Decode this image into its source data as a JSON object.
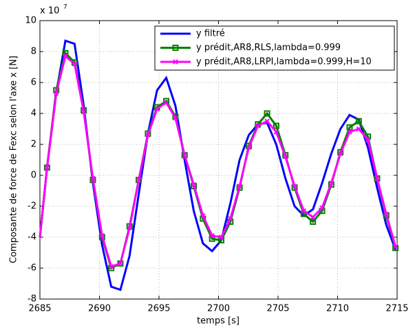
{
  "chart_data": {
    "type": "line",
    "x_label": "temps [s]",
    "y_label": "Composante de force de Fexc selon l'axe x [N]",
    "y_scale_base": "x 10",
    "y_scale_power": "7",
    "xlim": [
      2685,
      2715
    ],
    "xticks": [
      2685,
      2690,
      2695,
      2700,
      2705,
      2710,
      2715
    ],
    "ylim": [
      -8,
      10
    ],
    "yticks": [
      -8,
      -6,
      -4,
      -2,
      0,
      2,
      4,
      6,
      8,
      10
    ],
    "grid": true,
    "legend": "upper right",
    "x": [
      2685,
      2685.6,
      2686.37,
      2687.14,
      2687.91,
      2688.68,
      2689.45,
      2690.22,
      2690.99,
      2691.76,
      2692.53,
      2693.3,
      2694.07,
      2694.84,
      2695.61,
      2696.38,
      2697.15,
      2697.92,
      2698.69,
      2699.46,
      2700.23,
      2701.0,
      2701.77,
      2702.54,
      2703.31,
      2704.08,
      2704.85,
      2705.62,
      2706.39,
      2707.16,
      2707.93,
      2708.7,
      2709.47,
      2710.24,
      2711.01,
      2711.78,
      2712.55,
      2713.32,
      2714.09,
      2714.86
    ],
    "series": [
      {
        "name": "y filtré",
        "color": "#0000ff",
        "marker": "none",
        "values": [
          -4,
          0.5,
          5.3,
          8.7,
          8.5,
          4.5,
          -0.5,
          -4.5,
          -7.2,
          -7.4,
          -5.2,
          -1.2,
          2.7,
          5.5,
          6.3,
          4.5,
          1.0,
          -2.3,
          -4.4,
          -4.9,
          -4.2,
          -1.8,
          1.0,
          2.6,
          3.3,
          3.4,
          2.0,
          -0.2,
          -2.0,
          -2.6,
          -2.2,
          -0.5,
          1.4,
          3.0,
          3.9,
          3.6,
          1.8,
          -0.8,
          -3.2,
          -4.8
        ]
      },
      {
        "name": "y prédit,AR8,RLS,lambda=0.999",
        "color": "#008000",
        "marker": "square",
        "values": [
          -4,
          0.5,
          5.5,
          7.9,
          7.3,
          4.2,
          -0.3,
          -4.0,
          -6.0,
          -5.7,
          -3.3,
          -0.3,
          2.7,
          4.4,
          4.8,
          3.8,
          1.3,
          -0.7,
          -2.8,
          -4.1,
          -4.2,
          -3.0,
          -0.8,
          1.9,
          3.3,
          4.0,
          3.2,
          1.3,
          -0.8,
          -2.5,
          -3.0,
          -2.3,
          -0.6,
          1.5,
          3.1,
          3.5,
          2.5,
          -0.2,
          -2.6,
          -4.7
        ]
      },
      {
        "name": "y prédit,AR8,LRPI,lambda=0.999,H=10",
        "color": "#ff00ff",
        "marker": "x",
        "values": [
          -4,
          0.5,
          5.3,
          7.7,
          7.2,
          4.1,
          -0.2,
          -3.9,
          -5.9,
          -5.7,
          -3.4,
          -0.3,
          2.6,
          4.3,
          4.7,
          3.7,
          1.3,
          -0.6,
          -2.6,
          -3.9,
          -4.0,
          -2.8,
          -0.7,
          1.8,
          3.2,
          3.5,
          2.8,
          1.2,
          -0.7,
          -2.3,
          -2.7,
          -2.1,
          -0.5,
          1.4,
          2.8,
          3.0,
          2.3,
          -0.2,
          -2.5,
          -4.6
        ]
      }
    ]
  }
}
